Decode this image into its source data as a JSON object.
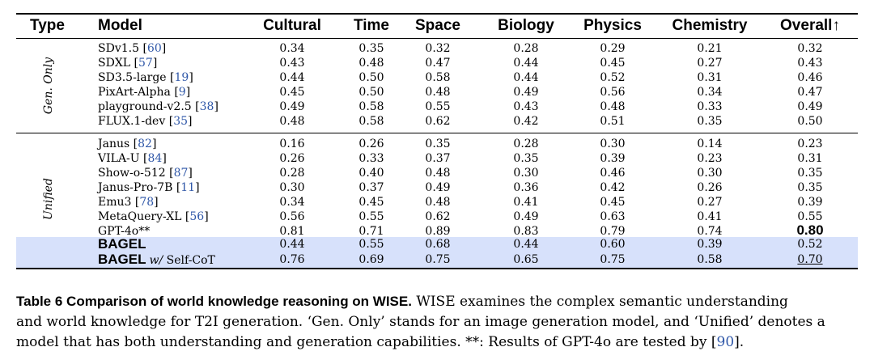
{
  "table": {
    "headers": [
      "Type",
      "Model",
      "Cultural",
      "Time",
      "Space",
      "Biology",
      "Physics",
      "Chemistry",
      "Overall↑"
    ],
    "groups": [
      {
        "type_label": "Gen. Only",
        "rows": [
          {
            "model": "SDv1.5",
            "ref": "60",
            "values": [
              "0.34",
              "0.35",
              "0.32",
              "0.28",
              "0.29",
              "0.21",
              "0.32"
            ]
          },
          {
            "model": "SDXL",
            "ref": "57",
            "values": [
              "0.43",
              "0.48",
              "0.47",
              "0.44",
              "0.45",
              "0.27",
              "0.43"
            ]
          },
          {
            "model": "SD3.5-large",
            "ref": "19",
            "values": [
              "0.44",
              "0.50",
              "0.58",
              "0.44",
              "0.52",
              "0.31",
              "0.46"
            ]
          },
          {
            "model": "PixArt-Alpha",
            "ref": "9",
            "values": [
              "0.45",
              "0.50",
              "0.48",
              "0.49",
              "0.56",
              "0.34",
              "0.47"
            ]
          },
          {
            "model": "playground-v2.5",
            "ref": "38",
            "values": [
              "0.49",
              "0.58",
              "0.55",
              "0.43",
              "0.48",
              "0.33",
              "0.49"
            ]
          },
          {
            "model": "FLUX.1-dev",
            "ref": "35",
            "values": [
              "0.48",
              "0.58",
              "0.62",
              "0.42",
              "0.51",
              "0.35",
              "0.50"
            ]
          }
        ]
      },
      {
        "type_label": "Unified",
        "rows": [
          {
            "model": "Janus",
            "ref": "82",
            "values": [
              "0.16",
              "0.26",
              "0.35",
              "0.28",
              "0.30",
              "0.14",
              "0.23"
            ]
          },
          {
            "model": "VILA-U",
            "ref": "84",
            "values": [
              "0.26",
              "0.33",
              "0.37",
              "0.35",
              "0.39",
              "0.23",
              "0.31"
            ]
          },
          {
            "model": "Show-o-512",
            "ref": "87",
            "values": [
              "0.28",
              "0.40",
              "0.48",
              "0.30",
              "0.46",
              "0.30",
              "0.35"
            ]
          },
          {
            "model": "Janus-Pro-7B",
            "ref": "11",
            "values": [
              "0.30",
              "0.37",
              "0.49",
              "0.36",
              "0.42",
              "0.26",
              "0.35"
            ]
          },
          {
            "model": "Emu3",
            "ref": "78",
            "values": [
              "0.34",
              "0.45",
              "0.48",
              "0.41",
              "0.45",
              "0.27",
              "0.39"
            ]
          },
          {
            "model": "MetaQuery-XL",
            "ref": "56",
            "values": [
              "0.56",
              "0.55",
              "0.62",
              "0.49",
              "0.63",
              "0.41",
              "0.55"
            ]
          },
          {
            "model": "GPT-4o**",
            "ref": "",
            "values": [
              "0.81",
              "0.71",
              "0.89",
              "0.83",
              "0.79",
              "0.74",
              "0.80"
            ]
          }
        ]
      }
    ],
    "bagel_rows": [
      {
        "model": "BAGEL",
        "suffix": "",
        "values": [
          "0.44",
          "0.55",
          "0.68",
          "0.44",
          "0.60",
          "0.39",
          "0.52"
        ]
      },
      {
        "model": "BAGEL",
        "suffix_italic": "w/",
        "suffix": " Self-CoT",
        "values": [
          "0.76",
          "0.69",
          "0.75",
          "0.65",
          "0.75",
          "0.58",
          "0.70"
        ]
      }
    ]
  },
  "caption": {
    "label": "Table 6  Comparison of world knowledge reasoning on WISE.",
    "line1_rest": " WISE examines the complex semantic understanding",
    "line2": "and world knowledge for T2I generation. ‘Gen. Only’ stands for an image generation model, and ‘Unified’ denotes a",
    "line3_pre": "model that has both understanding and generation capabilities. **: Results of GPT-4o are tested by [",
    "line3_ref": "90",
    "line3_post": "]."
  },
  "colors": {
    "highlight": "#d7e1fb",
    "link": "#2f57a8"
  }
}
